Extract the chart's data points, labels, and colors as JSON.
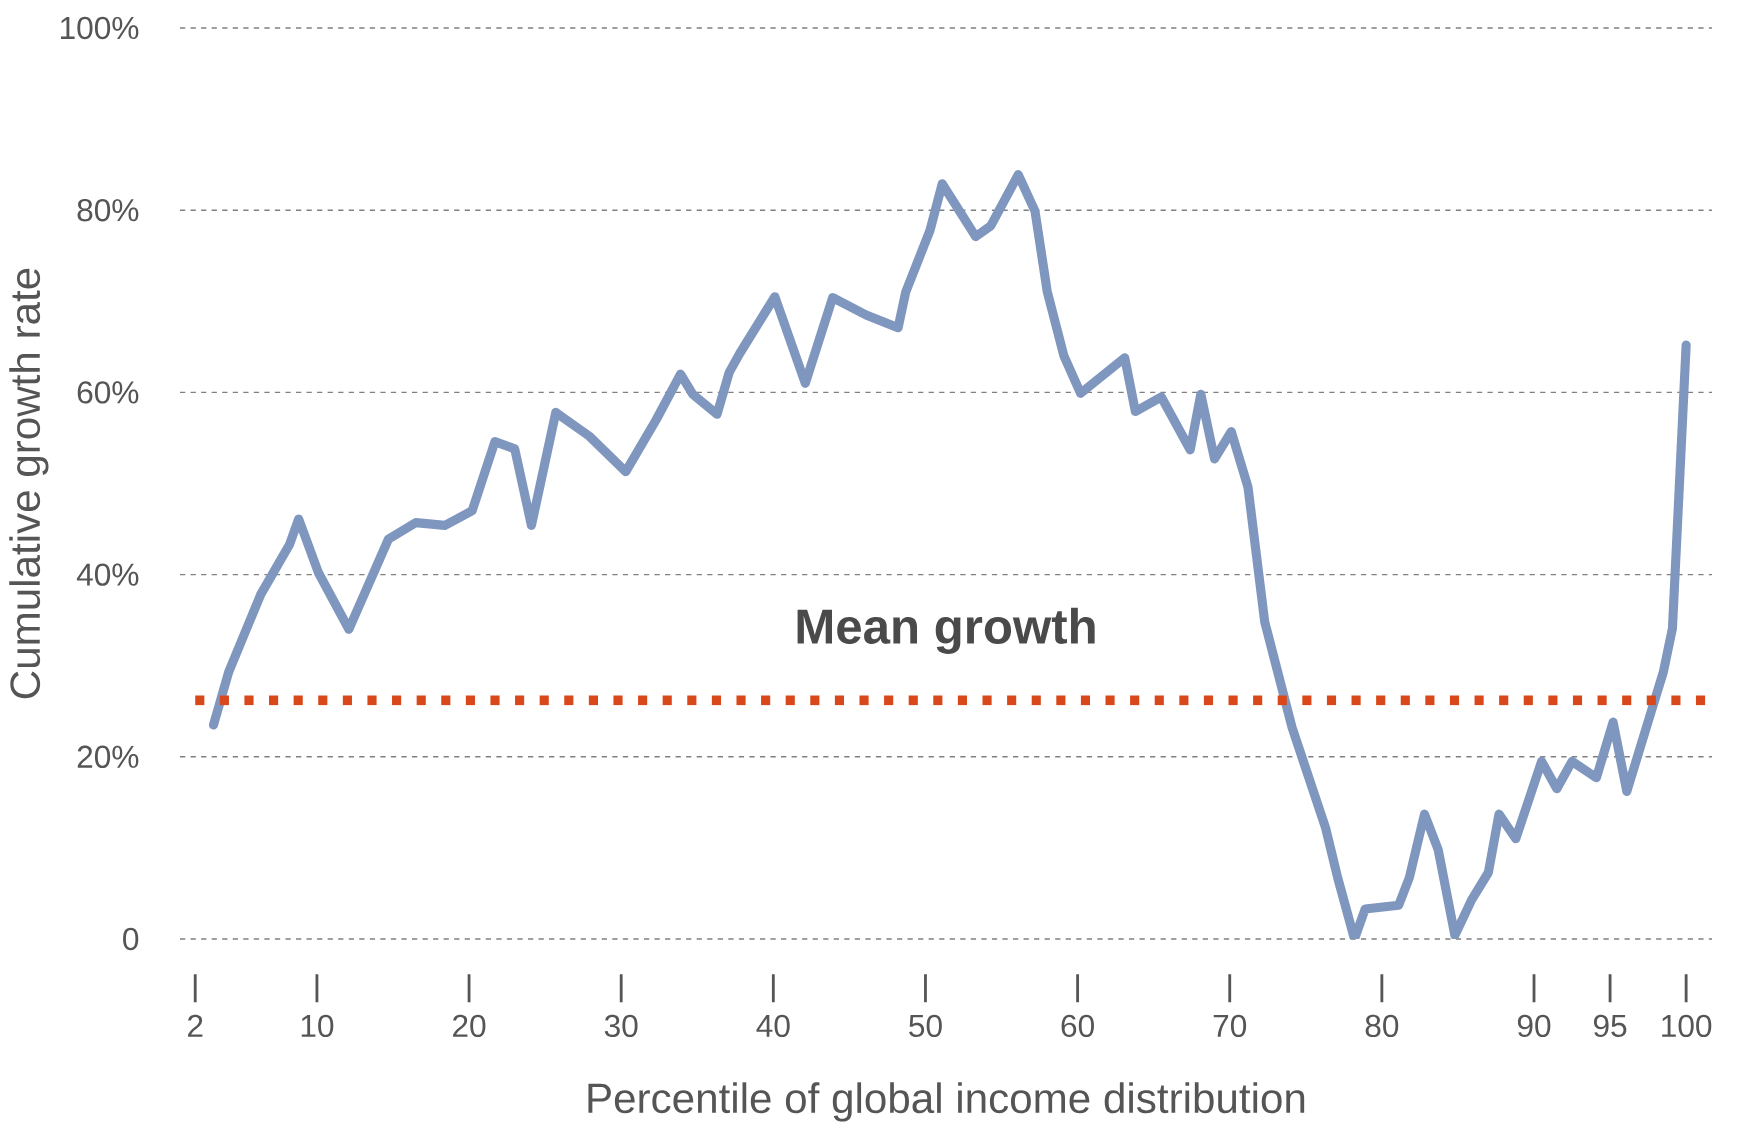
{
  "chart_data": {
    "type": "line",
    "xlabel": "Percentile of global income distribution",
    "ylabel": "Cumulative growth rate",
    "x": [
      3.2,
      4.2,
      6.3,
      8.2,
      8.8,
      10.1,
      12.1,
      14.7,
      16.5,
      18.4,
      20.2,
      21.7,
      23,
      24.1,
      25.7,
      27.9,
      30.3,
      32.3,
      33.9,
      34.7,
      36.3,
      37.1,
      37.8,
      40.1,
      42.1,
      43.9,
      46.1,
      48.2,
      48.7,
      50.3,
      51.1,
      53.3,
      54.3,
      56.1,
      57.2,
      58,
      59.1,
      60.2,
      63.1,
      63.8,
      65.5,
      67.4,
      68.1,
      69,
      70.1,
      71.2,
      72.3,
      74.1,
      76.3,
      77.1,
      78.2,
      78.9,
      81.1,
      81.8,
      82.8,
      83.7,
      84.8,
      85.9,
      87,
      87.7,
      88.8,
      90.5,
      91.5,
      92.5,
      94.1,
      95.2,
      96.1,
      97.6,
      98.5,
      99.1,
      100
    ],
    "series": [
      {
        "color": "#7f97bf",
        "values": [
          23.5,
          29.3,
          37.8,
          43.3,
          46.1,
          40.2,
          34,
          43.9,
          45.7,
          45.4,
          47,
          54.6,
          53.8,
          45.4,
          57.8,
          55.2,
          51.3,
          57,
          62,
          59.8,
          57.6,
          62.2,
          64.3,
          70.5,
          61,
          70.4,
          68.5,
          67.1,
          71,
          77.8,
          82.9,
          77.1,
          78.3,
          83.9,
          79.9,
          71.1,
          64,
          59.9,
          63.8,
          57.9,
          59.5,
          53.7,
          59.8,
          52.7,
          55.7,
          49.6,
          34.8,
          23.2,
          12.2,
          6.7,
          0,
          3.3,
          3.7,
          6.7,
          13.7,
          9.8,
          0.4,
          4.3,
          7.3,
          13.7,
          11,
          19.5,
          16.5,
          19.5,
          17.7,
          23.8,
          16.2,
          24.4,
          29.3,
          34.1,
          65.2
        ]
      }
    ],
    "xlim": [
      1,
      101.7
    ],
    "xticks": [
      2,
      10,
      20,
      30,
      40,
      50,
      60,
      70,
      80,
      90,
      95,
      100
    ],
    "ylim": [
      0,
      100
    ],
    "yticks": [
      {
        "value": 0,
        "label": "0"
      },
      {
        "value": 20,
        "label": "20%"
      },
      {
        "value": 40,
        "label": "40%"
      },
      {
        "value": 60,
        "label": "60%"
      },
      {
        "value": 80,
        "label": "80%"
      },
      {
        "value": 100,
        "label": "100%"
      }
    ],
    "grid": "y",
    "line_style": "solid",
    "marker": "none",
    "ref_lines": [
      {
        "axis": "y",
        "value": 26.2,
        "label": "Mean growth",
        "color": "#d9481a",
        "line_style": "dotted"
      }
    ]
  }
}
